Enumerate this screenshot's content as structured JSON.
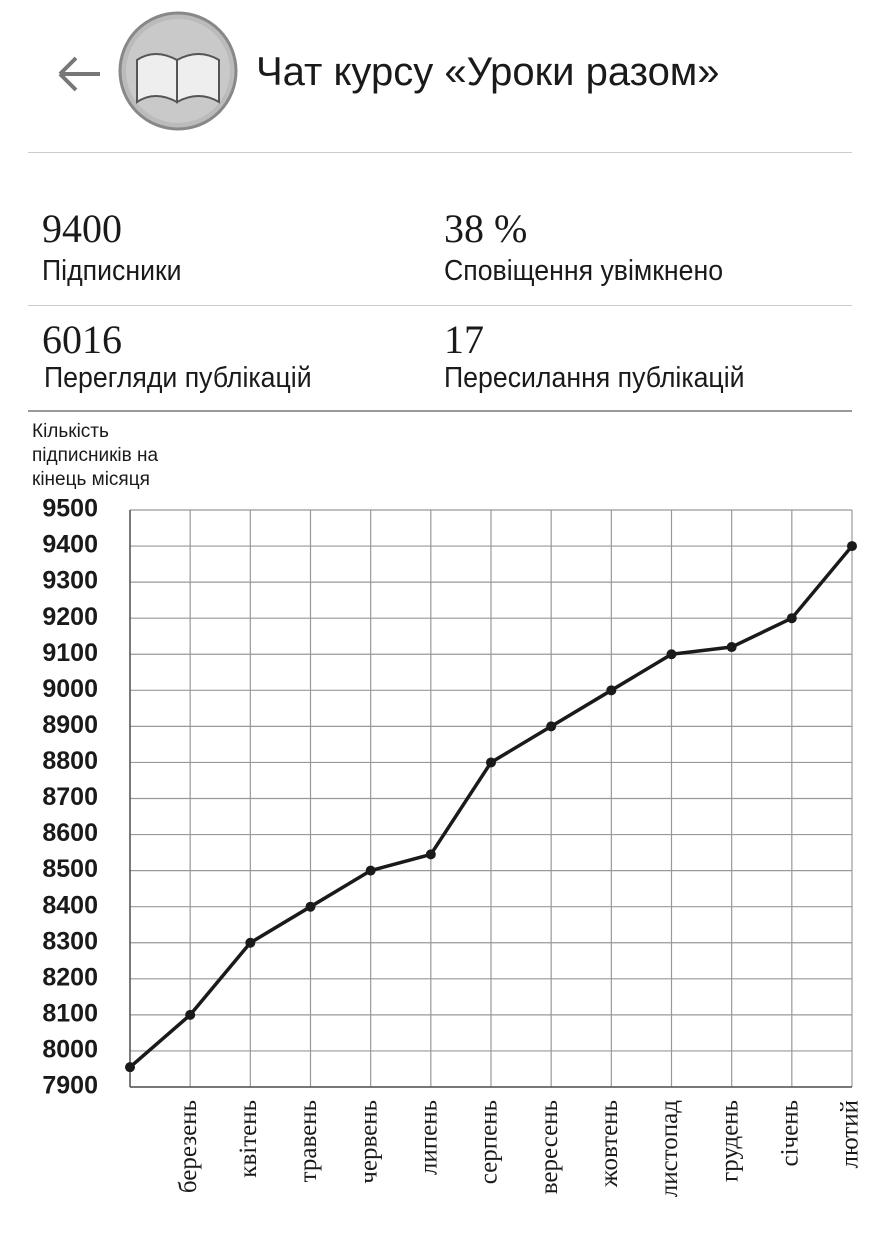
{
  "header": {
    "title": "Чат курсу «Уроки разом»"
  },
  "stats": [
    {
      "value": "9400",
      "label": "Підписники"
    },
    {
      "value": "38 %",
      "label": "Сповіщення увімкнено"
    },
    {
      "value": "6016",
      "label": "Перегляди публікацій"
    },
    {
      "value": "17",
      "label": "Пересилання публікацій"
    }
  ],
  "chart_data": {
    "type": "line",
    "y_label": "Кількість підписників на кінець місяця",
    "categories": [
      null,
      "березень",
      "квітень",
      "травень",
      "червень",
      "липень",
      "серпень",
      "вересень",
      "жовтень",
      "листопад",
      "грудень",
      "січень",
      "лютий"
    ],
    "values": [
      7955,
      8100,
      8300,
      8400,
      8500,
      8545,
      8800,
      8900,
      9000,
      9100,
      9120,
      9200,
      9400
    ],
    "color": "#1a1a1a",
    "ylim": [
      7900,
      9500
    ],
    "yticks": [
      7900,
      8000,
      8100,
      8200,
      8300,
      8400,
      8500,
      8600,
      8700,
      8800,
      8900,
      9000,
      9100,
      9200,
      9300,
      9400,
      9500
    ],
    "grid": true
  }
}
